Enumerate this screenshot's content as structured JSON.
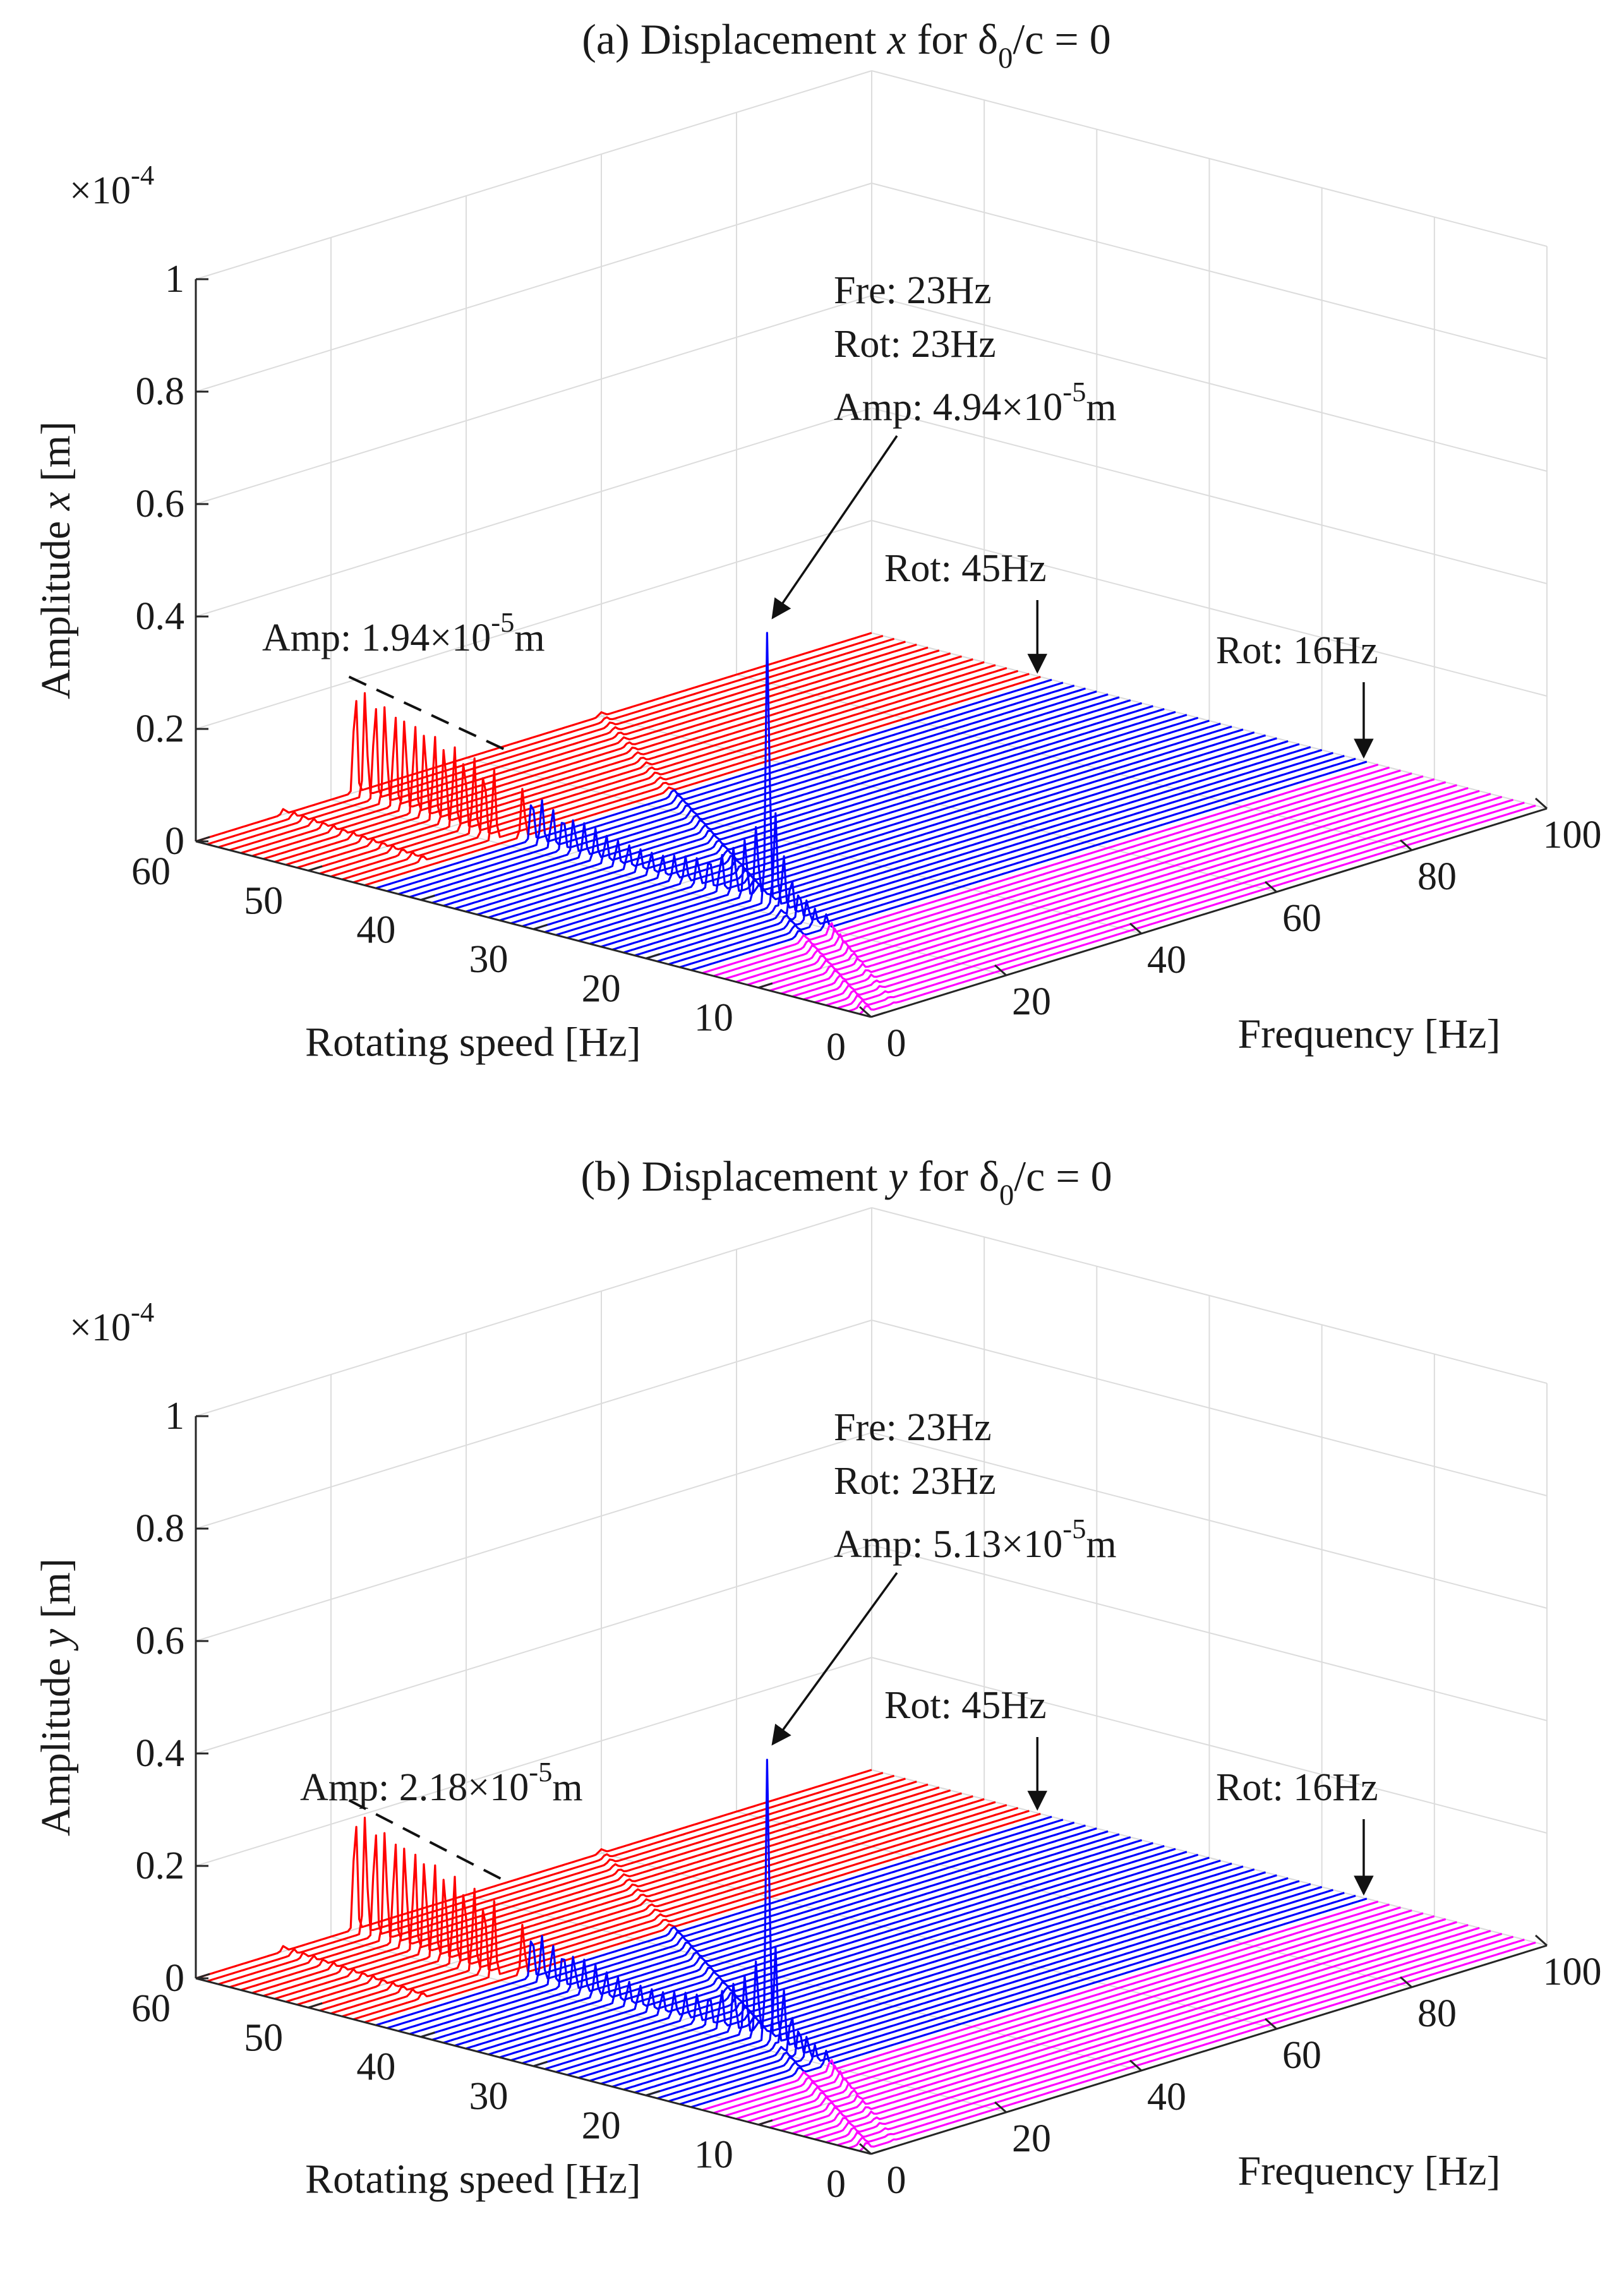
{
  "chart_data": [
    {
      "type": "waterfall-3d",
      "title": {
        "prefix": "(a) Displacement ",
        "var": "x",
        "mid": " for δ",
        "sub": "0",
        "suffix": "/c = 0"
      },
      "zlabel": {
        "prefix": "Amplitude ",
        "var": "x",
        "suffix": " [m]"
      },
      "xlabel": "Frequency [Hz]",
      "ylabel": "Rotating speed [Hz]",
      "zscale": {
        "base": "×10",
        "exp": "-4"
      },
      "xlim": [
        0,
        100
      ],
      "ylim": [
        0,
        60
      ],
      "zlim": [
        0,
        1
      ],
      "xticks": [
        "0",
        "20",
        "40",
        "60",
        "80",
        "100"
      ],
      "yticks": [
        "0",
        "10",
        "20",
        "30",
        "40",
        "50",
        "60"
      ],
      "zticks": [
        "0",
        "0.2",
        "0.4",
        "0.6",
        "0.8",
        "1"
      ],
      "grid": true,
      "colors": {
        "high_speed": "#ff0000",
        "mid_speed": "#0000ff",
        "low_speed": "#ff00ff"
      },
      "speed_regions": [
        {
          "color": "high_speed",
          "from": 45,
          "to": 60
        },
        {
          "color": "mid_speed",
          "from": 16,
          "to": 45
        },
        {
          "color": "low_speed",
          "from": 0,
          "to": 16
        }
      ],
      "rotation_speeds_hz": [
        60,
        59,
        58,
        57,
        56,
        55,
        54,
        53,
        52,
        51,
        50,
        49,
        48,
        47,
        46,
        45,
        44,
        43,
        42,
        41,
        40,
        39,
        38,
        37,
        36,
        35,
        34,
        33,
        32,
        31,
        30,
        29,
        28,
        27,
        26,
        25,
        24,
        23,
        22,
        21,
        20,
        19,
        18,
        17,
        16,
        15,
        14,
        13,
        12,
        11,
        10,
        9,
        8,
        7,
        6,
        5,
        4,
        3,
        2,
        1
      ],
      "peak_frequency_hz": [
        23.6,
        23.4,
        23.2,
        23.0,
        22.8,
        22.6,
        22.4,
        22.2,
        22.0,
        21.8,
        21.6,
        21.4,
        21.2,
        21.0,
        20.8,
        23.4,
        23.1,
        22.9,
        22.8,
        22.7,
        22.6,
        22.5,
        22.5,
        22.4,
        22.4,
        22.4,
        22.4,
        22.4,
        22.4,
        22.5,
        22.5,
        22.6,
        22.7,
        22.8,
        23.0,
        23.0,
        23.0,
        23.0,
        22.5,
        22.0,
        21.5,
        21.0,
        20.5,
        20.0,
        20.0,
        19.0,
        18.0,
        17.0,
        16.0,
        15.0,
        14.0,
        13.0,
        12.0,
        11.0,
        10.0,
        9.0,
        8.0,
        7.0,
        6.0,
        5.0
      ],
      "peak_amplitude_1e4m": [
        0.194,
        0.189,
        0.184,
        0.179,
        0.174,
        0.169,
        0.164,
        0.159,
        0.154,
        0.149,
        0.144,
        0.139,
        0.134,
        0.129,
        0.124,
        0.088,
        0.082,
        0.077,
        0.072,
        0.067,
        0.063,
        0.058,
        0.054,
        0.05,
        0.046,
        0.043,
        0.041,
        0.04,
        0.04,
        0.042,
        0.046,
        0.052,
        0.06,
        0.07,
        0.085,
        0.105,
        0.135,
        0.494,
        0.16,
        0.1,
        0.07,
        0.05,
        0.04,
        0.03,
        0.025,
        0.022,
        0.019,
        0.017,
        0.015,
        0.013,
        0.011,
        0.01,
        0.009,
        0.008,
        0.007,
        0.006,
        0.005,
        0.004,
        0.003,
        0.002
      ],
      "secondary_peak": {
        "frequency_hz": [
          13.0,
          12.8,
          12.6,
          12.4,
          12.2,
          12.0,
          11.8,
          11.6,
          11.4,
          11.2,
          11.0,
          10.8,
          10.6,
          10.4,
          10.2
        ],
        "amplitude_1e4m": 0.01
      },
      "harmonic_peak_amplitude_1e4m": 0.012,
      "annotations": [
        {
          "lines": [
            "Fre: 23Hz",
            "Rot: 23Hz"
          ],
          "amp_prefix": "Amp: 4.94",
          "amp_mult": "×10",
          "amp_exp": "-5",
          "amp_unit": "m",
          "target": {
            "freq": 23,
            "rot": 23,
            "amp": 0.494
          }
        },
        {
          "amp_prefix": "Amp: 1.94",
          "amp_mult": "×10",
          "amp_exp": "-5",
          "amp_unit": "m",
          "dashed_trend": true
        },
        {
          "lines": [
            "Rot: 45Hz"
          ],
          "target": {
            "freq": 100,
            "rot": 45,
            "amp": 0
          }
        },
        {
          "lines": [
            "Rot: 16Hz"
          ],
          "target": {
            "freq": 100,
            "rot": 16,
            "amp": 0
          }
        }
      ]
    },
    {
      "type": "waterfall-3d",
      "title": {
        "prefix": "(b) Displacement ",
        "var": "y",
        "mid": " for δ",
        "sub": "0",
        "suffix": "/c = 0"
      },
      "zlabel": {
        "prefix": "Amplitude ",
        "var": "y",
        "suffix": " [m]"
      },
      "xlabel": "Frequency [Hz]",
      "ylabel": "Rotating speed [Hz]",
      "zscale": {
        "base": "×10",
        "exp": "-4"
      },
      "xlim": [
        0,
        100
      ],
      "ylim": [
        0,
        60
      ],
      "zlim": [
        0,
        1
      ],
      "xticks": [
        "0",
        "20",
        "40",
        "60",
        "80",
        "100"
      ],
      "yticks": [
        "0",
        "10",
        "20",
        "30",
        "40",
        "50",
        "60"
      ],
      "zticks": [
        "0",
        "0.2",
        "0.4",
        "0.6",
        "0.8",
        "1"
      ],
      "grid": true,
      "colors": {
        "high_speed": "#ff0000",
        "mid_speed": "#0000ff",
        "low_speed": "#ff00ff"
      },
      "speed_regions": [
        {
          "color": "high_speed",
          "from": 45,
          "to": 60
        },
        {
          "color": "mid_speed",
          "from": 16,
          "to": 45
        },
        {
          "color": "low_speed",
          "from": 0,
          "to": 16
        }
      ],
      "rotation_speeds_hz": [
        60,
        59,
        58,
        57,
        56,
        55,
        54,
        53,
        52,
        51,
        50,
        49,
        48,
        47,
        46,
        45,
        44,
        43,
        42,
        41,
        40,
        39,
        38,
        37,
        36,
        35,
        34,
        33,
        32,
        31,
        30,
        29,
        28,
        27,
        26,
        25,
        24,
        23,
        22,
        21,
        20,
        19,
        18,
        17,
        16,
        15,
        14,
        13,
        12,
        11,
        10,
        9,
        8,
        7,
        6,
        5,
        4,
        3,
        2,
        1
      ],
      "peak_frequency_hz": [
        23.6,
        23.4,
        23.2,
        23.0,
        22.8,
        22.6,
        22.4,
        22.2,
        22.0,
        21.8,
        21.6,
        21.4,
        21.2,
        21.0,
        20.8,
        23.4,
        23.1,
        22.9,
        22.8,
        22.7,
        22.6,
        22.5,
        22.5,
        22.4,
        22.4,
        22.4,
        22.4,
        22.4,
        22.4,
        22.5,
        22.5,
        22.6,
        22.7,
        22.8,
        23.0,
        23.0,
        23.0,
        23.0,
        22.5,
        22.0,
        21.5,
        21.0,
        20.5,
        20.0,
        20.0,
        19.0,
        18.0,
        17.0,
        16.0,
        15.0,
        14.0,
        13.0,
        12.0,
        11.0,
        10.0,
        9.0,
        8.0,
        7.0,
        6.0,
        5.0
      ],
      "peak_amplitude_1e4m": [
        0.218,
        0.212,
        0.206,
        0.2,
        0.194,
        0.188,
        0.182,
        0.176,
        0.17,
        0.164,
        0.158,
        0.152,
        0.146,
        0.14,
        0.134,
        0.09,
        0.084,
        0.079,
        0.074,
        0.069,
        0.064,
        0.059,
        0.055,
        0.051,
        0.047,
        0.044,
        0.042,
        0.041,
        0.041,
        0.043,
        0.047,
        0.053,
        0.062,
        0.072,
        0.087,
        0.108,
        0.14,
        0.513,
        0.165,
        0.105,
        0.072,
        0.052,
        0.041,
        0.031,
        0.026,
        0.022,
        0.019,
        0.017,
        0.015,
        0.013,
        0.011,
        0.01,
        0.009,
        0.008,
        0.007,
        0.006,
        0.005,
        0.004,
        0.003,
        0.002
      ],
      "secondary_peak": {
        "frequency_hz": [
          13.0,
          12.8,
          12.6,
          12.4,
          12.2,
          12.0,
          11.8,
          11.6,
          11.4,
          11.2,
          11.0,
          10.8,
          10.6,
          10.4,
          10.2
        ],
        "amplitude_1e4m": 0.01
      },
      "harmonic_peak_amplitude_1e4m": 0.012,
      "annotations": [
        {
          "lines": [
            "Fre: 23Hz",
            "Rot: 23Hz"
          ],
          "amp_prefix": "Amp: 5.13",
          "amp_mult": "×10",
          "amp_exp": "-5",
          "amp_unit": "m",
          "target": {
            "freq": 23,
            "rot": 23,
            "amp": 0.513
          }
        },
        {
          "amp_prefix": "Amp: 2.18",
          "amp_mult": "×10",
          "amp_exp": "-5",
          "amp_unit": "m",
          "dashed_trend": true
        },
        {
          "lines": [
            "Rot: 45Hz"
          ],
          "target": {
            "freq": 100,
            "rot": 45,
            "amp": 0
          }
        },
        {
          "lines": [
            "Rot: 16Hz"
          ],
          "target": {
            "freq": 100,
            "rot": 16,
            "amp": 0
          }
        }
      ]
    }
  ]
}
